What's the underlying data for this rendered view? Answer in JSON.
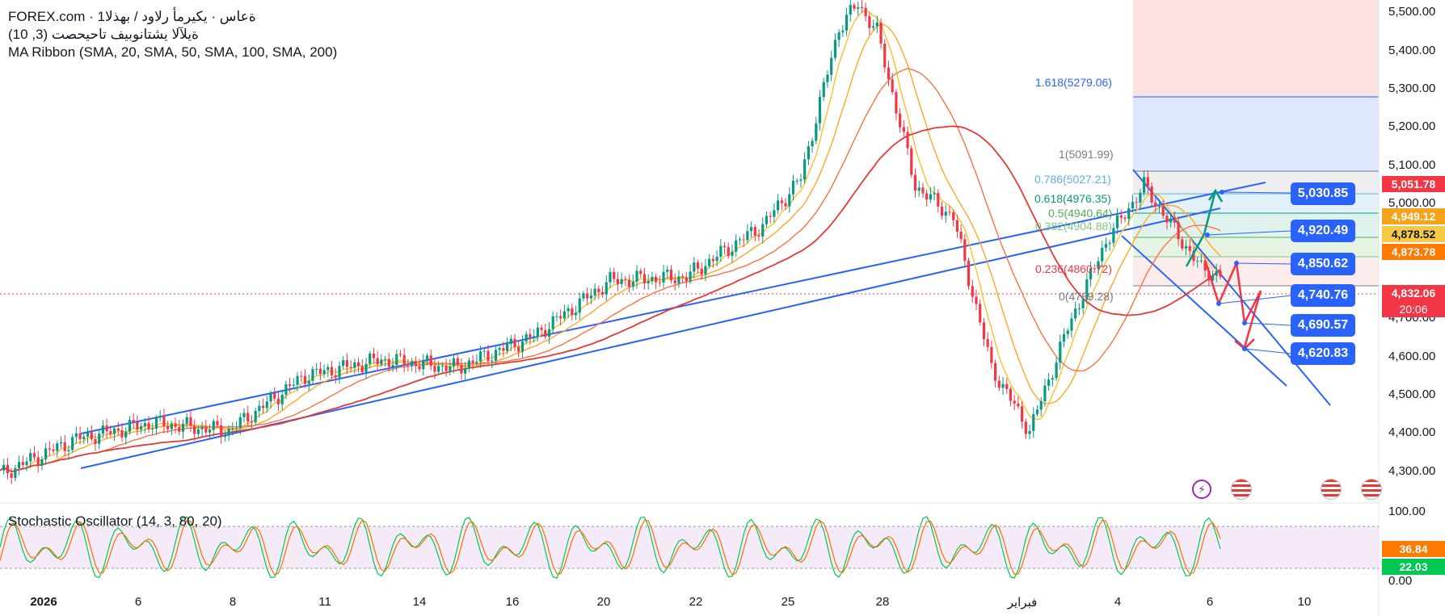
{
  "legend": {
    "line1": "FOREX.com · 1ةعاس · يكيرمأ رلاود / بهذلا",
    "line2": "ةيلآلا يشتانوبيف تاحيحصت (3, 10)",
    "line3": "MA Ribbon (SMA, 20, SMA, 50, SMA, 100, SMA, 200)"
  },
  "stochastic": {
    "title": "Stochastic Oscillator (14, 3, 80, 20)",
    "axis_labels": [
      "100.00",
      "0.00"
    ],
    "k_value": "36.84",
    "d_value": "22.03"
  },
  "price_axis": {
    "labels": [
      "5,500.00",
      "5,400.00",
      "5,300.00",
      "5,200.00",
      "5,100.00",
      "5,000.00",
      "4,700.00",
      "4,600.00",
      "4,500.00",
      "4,400.00",
      "4,300.00"
    ]
  },
  "price_tags": [
    {
      "text": "5,051.78",
      "color": "#f23645"
    },
    {
      "text": "4,949.12",
      "color": "#f7a21b"
    },
    {
      "text": "4,878.52",
      "color": "#f7c948"
    },
    {
      "text": "4,873.78",
      "color": "#ff7a00"
    },
    {
      "text": "4,832.06",
      "color": "#f23645"
    },
    {
      "text": "20:06",
      "color": "#f23645"
    }
  ],
  "time_axis": {
    "labels": [
      "2026",
      "6",
      "8",
      "11",
      "14",
      "16",
      "20",
      "22",
      "25",
      "28",
      "فبراير",
      "4",
      "6",
      "10"
    ]
  },
  "fib_levels": [
    {
      "text": "1.618(5279.06)",
      "color": "#2962ff"
    },
    {
      "text": "1(5091.99)",
      "color": "#787b86"
    },
    {
      "text": "0.786(5027.21)",
      "color": "#5ab0e8"
    },
    {
      "text": "0.618(4976.35)",
      "color": "#089981"
    },
    {
      "text": "0.5(4940.64)",
      "color": "#4caf50"
    },
    {
      "text": "0.382(4904.88)",
      "color": "#81c784"
    },
    {
      "text": "0.236(4860.72)",
      "color": "#f23645"
    },
    {
      "text": "0(4789.28)",
      "color": "#787b86"
    }
  ],
  "target_pills": [
    "5,030.85",
    "4,920.49",
    "4,850.62",
    "4,740.76",
    "4,690.57",
    "4,620.83"
  ],
  "chart_data": {
    "type": "line",
    "title": "",
    "xlabel": "",
    "ylabel": "",
    "ylim": [
      4260,
      5530
    ],
    "series": [
      {
        "name": "",
        "x_index": [
          0,
          20,
          40,
          60,
          80,
          100,
          120,
          140,
          160,
          180,
          200,
          210,
          220,
          225,
          230,
          240,
          250,
          260,
          270,
          280,
          290,
          300,
          310,
          315,
          320
        ],
        "values": [
          4330,
          4420,
          4460,
          4440,
          4580,
          4620,
          4600,
          4680,
          4820,
          4830,
          4960,
          5080,
          5460,
          5520,
          5450,
          5060,
          4980,
          4600,
          4440,
          4700,
          4920,
          5060,
          4920,
          4850,
          4832
        ]
      }
    ]
  },
  "icons": {
    "event_lightning": "lightning-icon",
    "flag_us": "us-flag-icon"
  }
}
